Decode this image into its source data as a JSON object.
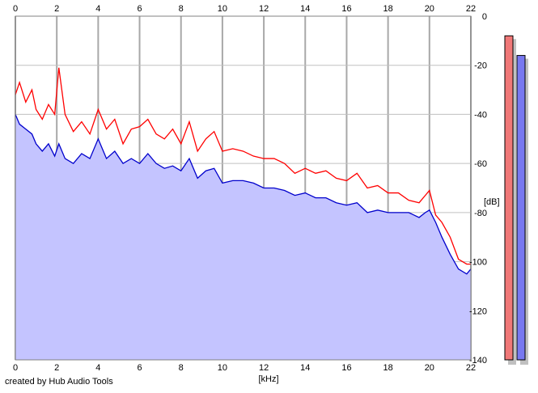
{
  "chart_data": {
    "type": "area",
    "xlabel": "[kHz]",
    "ylabel": "[dB]",
    "xlim": [
      0,
      22
    ],
    "ylim": [
      -140,
      0
    ],
    "x_ticks": [
      0,
      2,
      4,
      6,
      8,
      10,
      12,
      14,
      16,
      18,
      20,
      22
    ],
    "y_ticks": [
      0,
      -20,
      -40,
      -60,
      -80,
      -100,
      -120,
      -140
    ],
    "grid": true,
    "fill_color": "#c4c4ff",
    "series": [
      {
        "color": "#ff0000",
        "x": [
          0,
          0.2,
          0.5,
          0.8,
          1.0,
          1.3,
          1.6,
          1.9,
          2.1,
          2.4,
          2.8,
          3.2,
          3.6,
          4.0,
          4.4,
          4.8,
          5.2,
          5.6,
          6.0,
          6.4,
          6.8,
          7.2,
          7.6,
          8.0,
          8.4,
          8.8,
          9.2,
          9.6,
          10.0,
          10.5,
          11.0,
          11.5,
          12.0,
          12.5,
          13.0,
          13.5,
          14.0,
          14.5,
          15.0,
          15.5,
          16.0,
          16.5,
          17.0,
          17.5,
          18.0,
          18.5,
          19.0,
          19.5,
          19.8,
          20.0,
          20.3,
          20.6,
          21.0,
          21.4,
          21.8,
          22.0
        ],
        "y": [
          -32,
          -27,
          -35,
          -30,
          -38,
          -42,
          -36,
          -40,
          -21,
          -40,
          -47,
          -43,
          -48,
          -38,
          -46,
          -42,
          -52,
          -46,
          -45,
          -42,
          -48,
          -50,
          -46,
          -52,
          -43,
          -55,
          -50,
          -47,
          -55,
          -54,
          -55,
          -57,
          -58,
          -58,
          -60,
          -64,
          -62,
          -64,
          -63,
          -66,
          -67,
          -64,
          -70,
          -69,
          -72,
          -72,
          -75,
          -76,
          -73,
          -71,
          -81,
          -84,
          -90,
          -99,
          -101,
          -101
        ]
      },
      {
        "color": "#0000cc",
        "x": [
          0,
          0.2,
          0.5,
          0.8,
          1.0,
          1.3,
          1.6,
          1.9,
          2.1,
          2.4,
          2.8,
          3.2,
          3.6,
          4.0,
          4.4,
          4.8,
          5.2,
          5.6,
          6.0,
          6.4,
          6.8,
          7.2,
          7.6,
          8.0,
          8.4,
          8.8,
          9.2,
          9.6,
          10.0,
          10.5,
          11.0,
          11.5,
          12.0,
          12.5,
          13.0,
          13.5,
          14.0,
          14.5,
          15.0,
          15.5,
          16.0,
          16.5,
          17.0,
          17.5,
          18.0,
          18.5,
          19.0,
          19.5,
          19.8,
          20.0,
          20.3,
          20.6,
          21.0,
          21.4,
          21.8,
          22.0
        ],
        "y": [
          -40,
          -44,
          -46,
          -48,
          -52,
          -55,
          -52,
          -57,
          -52,
          -58,
          -60,
          -56,
          -58,
          -50,
          -58,
          -55,
          -60,
          -58,
          -60,
          -56,
          -60,
          -62,
          -61,
          -63,
          -58,
          -66,
          -63,
          -62,
          -68,
          -67,
          -67,
          -68,
          -70,
          -70,
          -71,
          -73,
          -72,
          -74,
          -74,
          -76,
          -77,
          -76,
          -80,
          -79,
          -80,
          -80,
          -80,
          -82,
          -80,
          -79,
          -84,
          -90,
          -97,
          -103,
          -105,
          -103
        ]
      }
    ],
    "meters": [
      {
        "color": "#f07878",
        "value_db": -8
      },
      {
        "color": "#7878f0",
        "value_db": -16
      }
    ]
  },
  "footer": {
    "credit": "created by Hub Audio Tools"
  }
}
